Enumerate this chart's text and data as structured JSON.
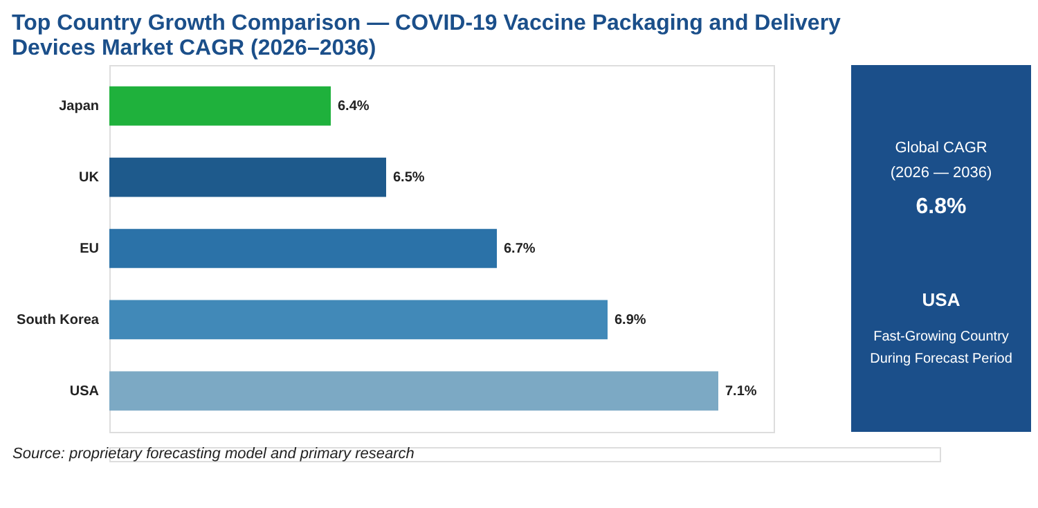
{
  "chart_data": {
    "type": "bar",
    "orientation": "horizontal",
    "title": "Top Country Growth Comparison — COVID-19 Vaccine Packaging and Delivery Devices Market CAGR (2026–2036)",
    "categories": [
      "Japan",
      "UK",
      "EU",
      "South Korea",
      "USA"
    ],
    "values": [
      6.4,
      6.5,
      6.7,
      6.9,
      7.1
    ],
    "value_labels": [
      "6.4%",
      "6.5%",
      "6.7%",
      "6.9%",
      "7.1%"
    ],
    "colors": [
      "#1fb13c",
      "#1e5a8c",
      "#2b72a8",
      "#4189b8",
      "#7ca9c4"
    ],
    "xlim": [
      6.0,
      7.2
    ],
    "tick_labels": "y",
    "annotations": [
      "Global CAGR",
      "(2026 — 2036)",
      "6.8%",
      "USA",
      "Fast-Growing Country",
      "During Forecast Period",
      "Source: proprietary forecasting model and primary research"
    ]
  }
}
